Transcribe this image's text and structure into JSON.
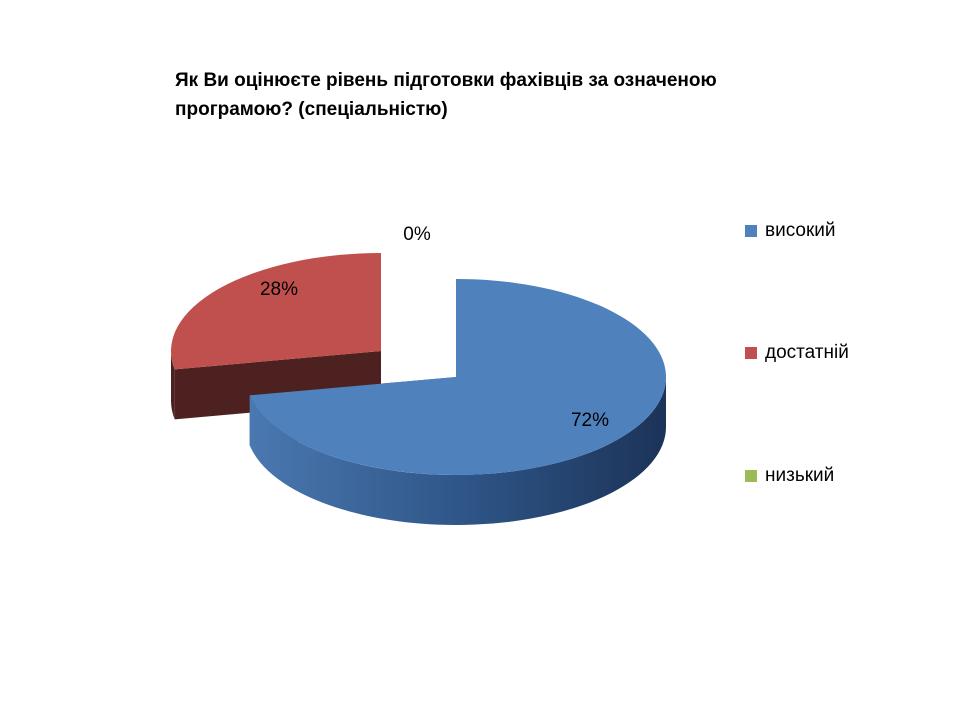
{
  "chart_data": {
    "type": "pie",
    "title_lines": [
      "Як Ви оцінюєте рівень підготовки фахівців за означеною",
      "програмою? (спеціальністю)"
    ],
    "categories": [
      "високий",
      "достатній",
      "низький"
    ],
    "values": [
      72,
      28,
      0
    ],
    "data_labels": [
      "72%",
      "28%",
      "0%"
    ],
    "colors": [
      "#4f81bd",
      "#c0504d",
      "#9bbb59"
    ],
    "side_colors": [
      "#2a4d7a",
      "#4d2120",
      "#5a7030"
    ],
    "legend_position": "right",
    "style": "3d-exploded"
  }
}
